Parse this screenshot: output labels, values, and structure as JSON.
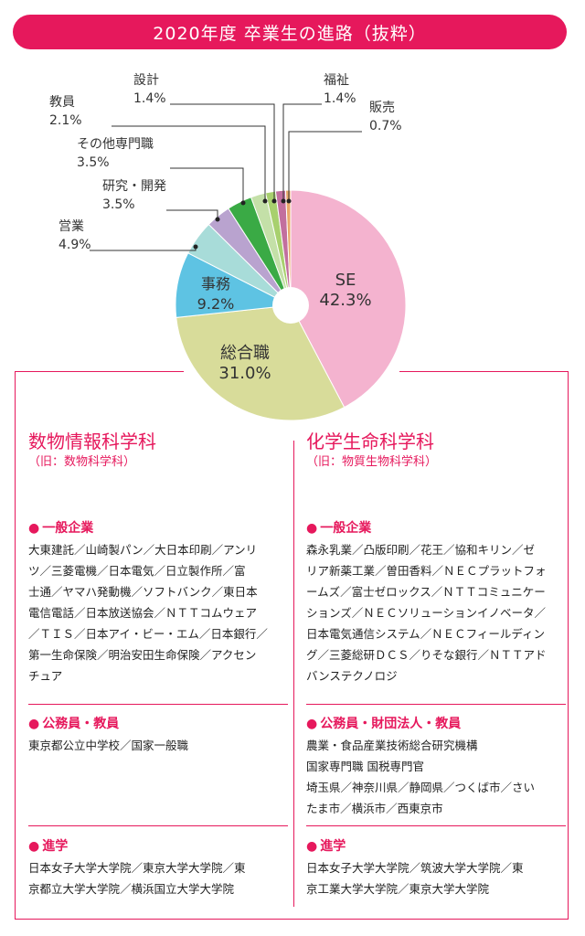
{
  "title": "2020年度 卒業生の進路（抜粋）",
  "chart_data": {
    "type": "pie",
    "title": "2020年度 卒業生の進路（抜粋）",
    "slices": [
      {
        "label": "SE",
        "value": 42.3,
        "value_label": "42.3%",
        "color": "#f4b3cf"
      },
      {
        "label": "総合職",
        "value": 31.0,
        "value_label": "31.0%",
        "color": "#d8dc9a"
      },
      {
        "label": "事務",
        "value": 9.2,
        "value_label": "9.2%",
        "color": "#5ec3e3"
      },
      {
        "label": "営業",
        "value": 4.9,
        "value_label": "4.9%",
        "color": "#a8dcd9"
      },
      {
        "label": "研究・開発",
        "value": 3.5,
        "value_label": "3.5%",
        "color": "#b9a3cf"
      },
      {
        "label": "その他専門職",
        "value": 3.5,
        "value_label": "3.5%",
        "color": "#3aaa45"
      },
      {
        "label": "教員",
        "value": 2.1,
        "value_label": "2.1%",
        "color": "#c4e0a8"
      },
      {
        "label": "設計",
        "value": 1.4,
        "value_label": "1.4%",
        "color": "#a8d06e"
      },
      {
        "label": "福祉",
        "value": 1.4,
        "value_label": "1.4%",
        "color": "#c26f9e"
      },
      {
        "label": "販売",
        "value": 0.7,
        "value_label": "0.7%",
        "color": "#e8a86a"
      }
    ]
  },
  "departments": [
    {
      "name": "数物情報科学科",
      "former": "（旧：数物科学科）",
      "sections": [
        {
          "title": "一般企業",
          "lines": [
            "大東建託／山崎製パン／大日本印刷／アンリ",
            "ツ／三菱電機／日本電気／日立製作所／富",
            "士通／ヤマハ発動機／ソフトバンク／東日本",
            "電信電話／日本放送協会／ＮＴＴコムウェア",
            "／ＴＩＳ／日本アイ・ビー・エム／日本銀行／",
            "第一生命保険／明治安田生命保険／アクセン",
            "チュア"
          ]
        },
        {
          "title": "公務員・教員",
          "lines": [
            "東京都公立中学校／国家一般職"
          ]
        },
        {
          "title": "進学",
          "lines": [
            "日本女子大学大学院／東京大学大学院／東",
            "京都立大学大学院／横浜国立大学大学院"
          ]
        }
      ]
    },
    {
      "name": "化学生命科学科",
      "former": "（旧：物質生物科学科）",
      "sections": [
        {
          "title": "一般企業",
          "lines": [
            "森永乳業／凸版印刷／花王／協和キリン／ゼ",
            "リア新薬工業／曽田香料／ＮＥＣプラットフォ",
            "ームズ／富士ゼロックス／ＮＴＴコミュニケー",
            "ションズ／ＮＥＣソリューションイノベータ／",
            "日本電気通信システム／ＮＥＣフィールディン",
            "グ／三菱総研ＤＣＳ／りそな銀行／ＮＴＴアド",
            "バンステクノロジ"
          ]
        },
        {
          "title": "公務員・財団法人・教員",
          "lines": [
            "農業・食品産業技術総合研究機構",
            "国家専門職 国税専門官",
            "埼玉県／神奈川県／静岡県／つくば市／さい",
            "たま市／横浜市／西東京市"
          ]
        },
        {
          "title": "進学",
          "lines": [
            "日本女子大学大学院／筑波大学大学院／東",
            "京工業大学大学院／東京大学大学院"
          ]
        }
      ]
    }
  ]
}
